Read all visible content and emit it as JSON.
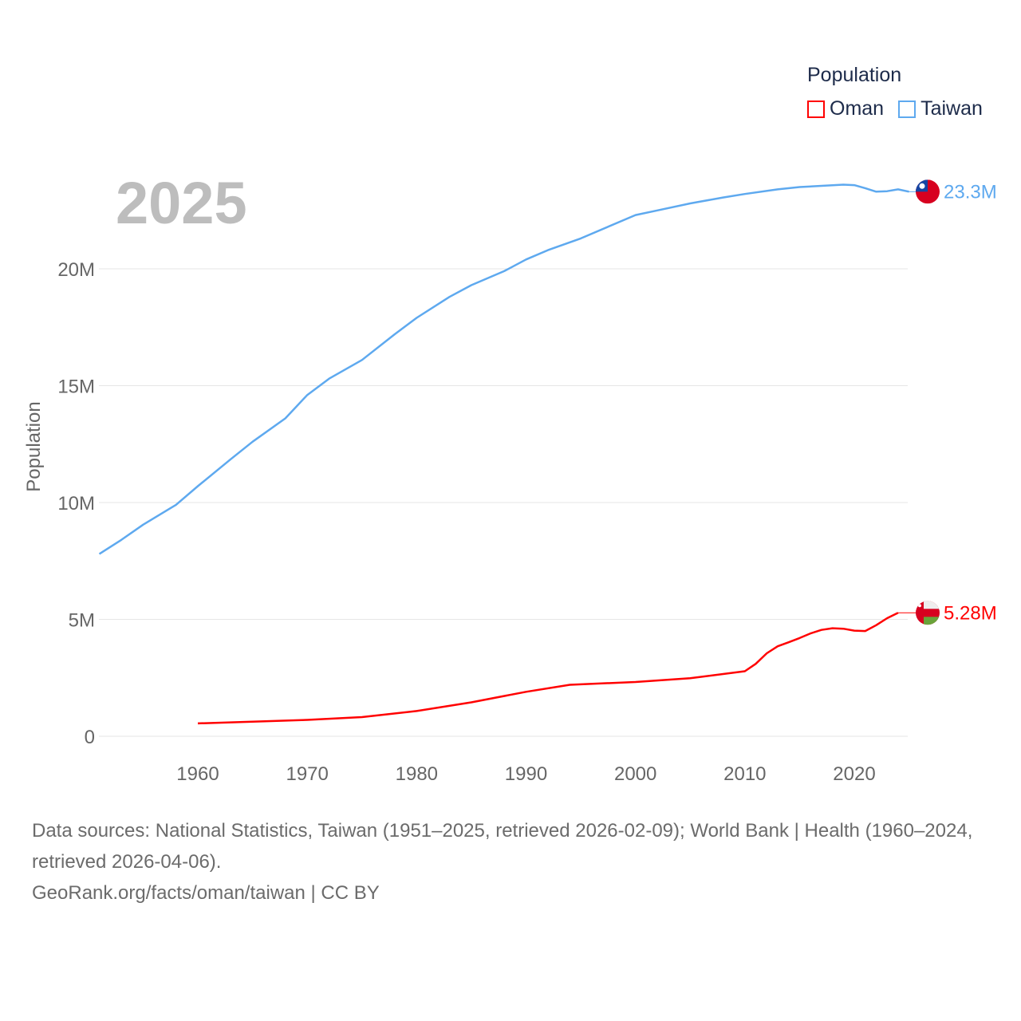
{
  "chart_data": {
    "type": "line",
    "title": "",
    "year_label": "2025",
    "xlabel": "",
    "ylabel": "Population",
    "xlim": [
      1951,
      2025
    ],
    "ylim": [
      0,
      25000000
    ],
    "x_ticks": [
      1960,
      1970,
      1980,
      1990,
      2000,
      2010,
      2020
    ],
    "x_tick_labels": [
      "1960",
      "1970",
      "1980",
      "1990",
      "2000",
      "2010",
      "2020"
    ],
    "y_ticks": [
      0,
      5000000,
      10000000,
      15000000,
      20000000
    ],
    "y_tick_labels": [
      "0",
      "5M",
      "10M",
      "15M",
      "20M"
    ],
    "grid": true,
    "legend": {
      "title": "Population",
      "placement": "top-right"
    },
    "series": [
      {
        "name": "Oman",
        "color": "#ff0000",
        "end_label": "5.28M",
        "x": [
          1960,
          1965,
          1970,
          1975,
          1980,
          1985,
          1990,
          1994,
          2000,
          2005,
          2010,
          2011,
          2012,
          2013,
          2014,
          2015,
          2016,
          2017,
          2018,
          2019,
          2020,
          2021,
          2022,
          2023,
          2024
        ],
        "y": [
          0.55,
          0.62,
          0.7,
          0.82,
          1.08,
          1.45,
          1.9,
          2.2,
          2.32,
          2.48,
          2.78,
          3.1,
          3.55,
          3.85,
          4.02,
          4.2,
          4.4,
          4.55,
          4.62,
          4.6,
          4.52,
          4.5,
          4.75,
          5.05,
          5.28
        ]
      },
      {
        "name": "Taiwan",
        "color": "#5ea9ef",
        "end_label": "23.3M",
        "x": [
          1951,
          1953,
          1955,
          1958,
          1960,
          1963,
          1965,
          1968,
          1970,
          1972,
          1975,
          1978,
          1980,
          1983,
          1985,
          1988,
          1990,
          1992,
          1995,
          2000,
          2002,
          2005,
          2008,
          2010,
          2013,
          2015,
          2017,
          2019,
          2020,
          2021,
          2022,
          2023,
          2024,
          2025
        ],
        "y": [
          7.8,
          8.4,
          9.05,
          9.9,
          10.7,
          11.85,
          12.6,
          13.6,
          14.6,
          15.3,
          16.1,
          17.2,
          17.9,
          18.8,
          19.3,
          19.9,
          20.4,
          20.8,
          21.3,
          22.3,
          22.5,
          22.8,
          23.05,
          23.2,
          23.4,
          23.5,
          23.55,
          23.6,
          23.58,
          23.45,
          23.3,
          23.32,
          23.4,
          23.3
        ]
      }
    ],
    "units": "millions"
  },
  "footer": {
    "sources": "Data sources: National Statistics, Taiwan (1951–2025, retrieved 2026-02-09); World Bank | Health (1960–2024, retrieved 2026-04-06).",
    "link": "GeoRank.org/facts/oman/taiwan | CC BY"
  }
}
